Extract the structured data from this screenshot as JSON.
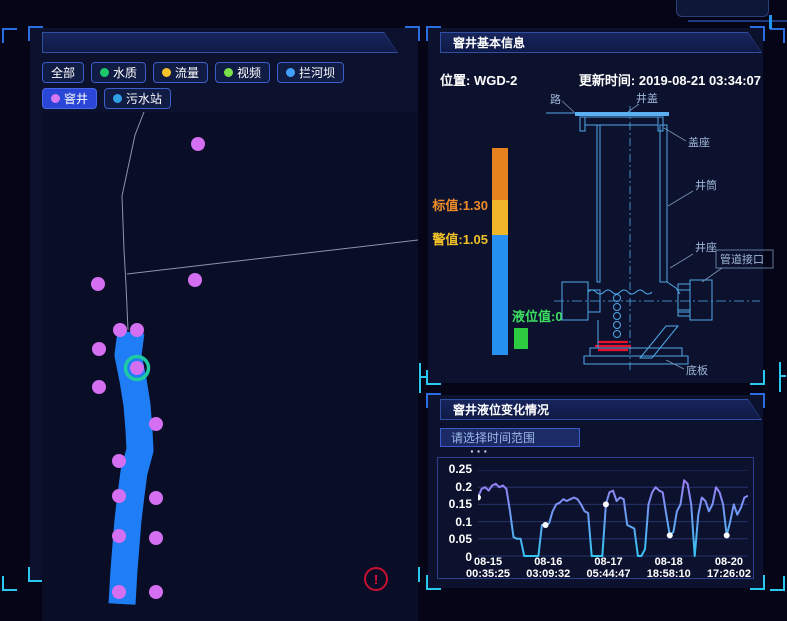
{
  "map_panel": {
    "header": "",
    "filters": [
      {
        "label": "全部",
        "dot": null,
        "active": false
      },
      {
        "label": "水质",
        "dot": "#1ec96a",
        "active": false
      },
      {
        "label": "流量",
        "dot": "#f6c32a",
        "active": false
      },
      {
        "label": "视频",
        "dot": "#7be04a",
        "active": false
      },
      {
        "label": "拦河坝",
        "dot": "#41a0ff",
        "active": false
      },
      {
        "label": "窨井",
        "dot": "#d678f2",
        "active": true
      },
      {
        "label": "污水站",
        "dot": "#2f9fe8",
        "active": false
      }
    ],
    "alert_icon": "!",
    "marker_color": "#d36ff0",
    "selected_marker_ring_color": "#1fc9a2",
    "selected_marker_index": 6,
    "markers": [
      [
        156,
        32
      ],
      [
        56,
        172
      ],
      [
        153,
        168
      ],
      [
        78,
        218
      ],
      [
        95,
        218
      ],
      [
        57,
        237
      ],
      [
        95,
        256
      ],
      [
        57,
        275
      ],
      [
        114,
        312
      ],
      [
        77,
        349
      ],
      [
        77,
        384
      ],
      [
        114,
        386
      ],
      [
        77,
        424
      ],
      [
        114,
        426
      ],
      [
        77,
        480
      ],
      [
        114,
        480
      ]
    ],
    "roads": [
      [
        102,
        0,
        93,
        23,
        80,
        84,
        82,
        138,
        84,
        173,
        86,
        218
      ],
      [
        85,
        162,
        376,
        128
      ]
    ],
    "river": [
      [
        89,
        220
      ],
      [
        86,
        243
      ],
      [
        91,
        268
      ],
      [
        95,
        293
      ],
      [
        97,
        318
      ],
      [
        98,
        338
      ],
      [
        92,
        360
      ],
      [
        89,
        383
      ],
      [
        86,
        408
      ],
      [
        84,
        433
      ],
      [
        82,
        458
      ],
      [
        80,
        492
      ]
    ]
  },
  "info_panel": {
    "title": "窨井基本信息",
    "location_label": "位置:",
    "location_value": "WGD-2",
    "update_label": "更新时间:",
    "update_value": "2019-08-21 03:34:07",
    "gauge": {
      "standard_label": "标值:1.30",
      "warning_label": "警值:1.05",
      "level_label": "液位值:0",
      "colors": {
        "top": "#e8821e",
        "middle": "#f0b62a",
        "bottom": "#2590f0",
        "level_box": "#2ecc40"
      }
    },
    "diagram_labels": {
      "road": "路",
      "cover": "井盖",
      "cover_seat": "盖座",
      "shaft": "井筒",
      "well_seat": "井座",
      "pipe_joint": "管道接口",
      "bottom_plate": "底板"
    }
  },
  "chart_panel": {
    "title": "窨井液位变化情况",
    "range_button": "请选择时间范围",
    "toolbox": "···"
  },
  "chart_data": {
    "type": "line",
    "title": "窨井液位变化情况",
    "ylim": [
      0,
      0.25
    ],
    "yticks": [
      0,
      0.05,
      0.1,
      0.15,
      0.2,
      0.25
    ],
    "ytick_labels": [
      "0.25",
      "0.2",
      "0.15",
      "0.1",
      "0.05",
      "0"
    ],
    "x_labels": [
      [
        "08-15",
        "00:35:25"
      ],
      [
        "08-16",
        "03:09:32"
      ],
      [
        "08-17",
        "05:44:47"
      ],
      [
        "08-18",
        "18:58:10"
      ],
      [
        "08-20",
        "17:26:02"
      ]
    ],
    "grid": true,
    "legend": "none",
    "values": [
      0.17,
      0.195,
      0.2,
      0.19,
      0.205,
      0.21,
      0.2,
      0.205,
      0.195,
      0.13,
      0.055,
      0.05,
      0.05,
      0,
      0,
      0,
      0,
      0,
      0.09,
      0.09,
      0.095,
      0.13,
      0.15,
      0.155,
      0.165,
      0.16,
      0.165,
      0.17,
      0.165,
      0.15,
      0.13,
      0.125,
      0,
      0,
      0,
      0,
      0.15,
      0.185,
      0.19,
      0.16,
      0.17,
      0.165,
      0.09,
      0.085,
      0.08,
      0,
      0,
      0.02,
      0.15,
      0.185,
      0.2,
      0.19,
      0.185,
      0.12,
      0.06,
      0.07,
      0.13,
      0.15,
      0.22,
      0.21,
      0.15,
      0,
      0.12,
      0.17,
      0.16,
      0.13,
      0.15,
      0.2,
      0.185,
      0.15,
      0.06,
      0.1,
      0.15,
      0.12,
      0.14,
      0.17,
      0.175
    ],
    "marker_indices": [
      0,
      19,
      36,
      54,
      70
    ]
  }
}
